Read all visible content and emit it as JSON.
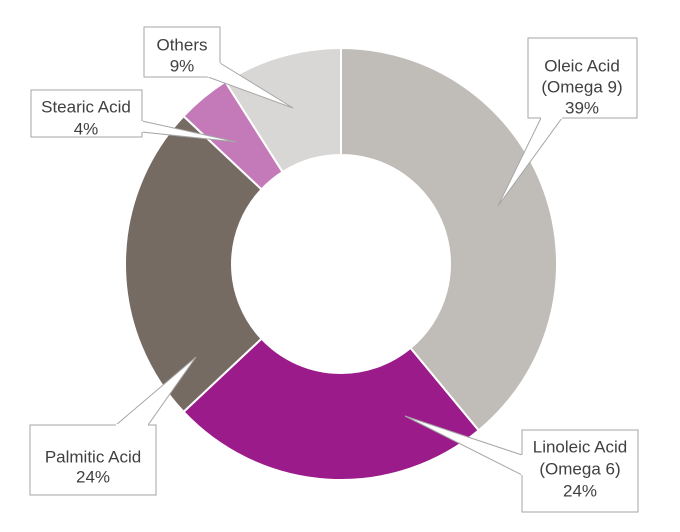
{
  "chart_data": {
    "type": "pie",
    "style": "donut",
    "title": "",
    "series": [
      {
        "label_lines": [
          "Oleic Acid",
          "(Omega 9)"
        ],
        "value": 39,
        "value_label": "39%",
        "color": "#c0bdb8"
      },
      {
        "label_lines": [
          "Linoleic Acid",
          "(Omega 6)"
        ],
        "value": 24,
        "value_label": "24%",
        "color": "#9b1b8a"
      },
      {
        "label_lines": [
          "Palmitic Acid"
        ],
        "value": 24,
        "value_label": "24%",
        "color": "#766b63"
      },
      {
        "label_lines": [
          "Stearic Acid"
        ],
        "value": 4,
        "value_label": "4%",
        "color": "#c479b8"
      },
      {
        "label_lines": [
          "Others"
        ],
        "value": 9,
        "value_label": "9%",
        "color": "#d9d7d5"
      }
    ],
    "legend": "none",
    "data_labels": "callouts"
  }
}
